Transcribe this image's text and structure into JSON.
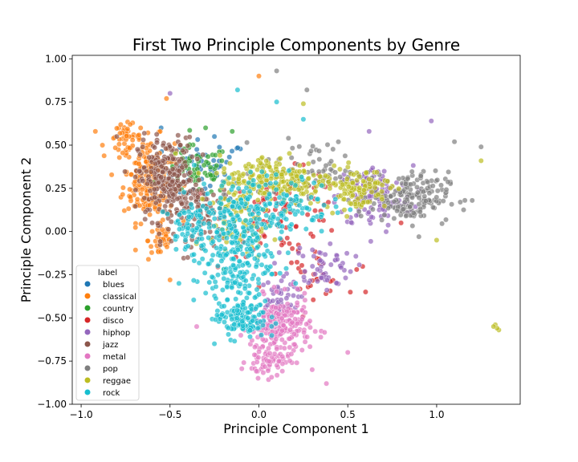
{
  "chart_data": {
    "type": "scatter",
    "title": "First Two Principle Components by Genre",
    "xlabel": "Principle Component 1",
    "ylabel": "Principle Component 2",
    "xlim": [
      -1.05,
      1.47
    ],
    "ylim": [
      -1.0,
      1.02
    ],
    "xticks": [
      -1.0,
      -0.5,
      0.0,
      0.5,
      1.0
    ],
    "xtick_labels": [
      "−1.0",
      "−0.5",
      "0.0",
      "0.5",
      "1.0"
    ],
    "yticks": [
      -1.0,
      -0.75,
      -0.5,
      -0.25,
      0.0,
      0.25,
      0.5,
      0.75,
      1.0
    ],
    "ytick_labels": [
      "−1.00",
      "−0.75",
      "−0.50",
      "−0.25",
      "0.00",
      "0.25",
      "0.50",
      "0.75",
      "1.00"
    ],
    "grid": false,
    "legend": {
      "title": "label",
      "placement": "lower-left"
    },
    "series": [
      {
        "name": "blues",
        "color": "#1f77b4",
        "clusters": [
          {
            "center": [
              -0.3,
              0.35
            ],
            "spread": [
              0.2,
              0.15
            ],
            "n": 60
          }
        ],
        "points": [
          [
            -0.55,
            0.6
          ],
          [
            -0.25,
            0.55
          ]
        ]
      },
      {
        "name": "classical",
        "color": "#ff7f0e",
        "clusters": [
          {
            "center": [
              -0.62,
              0.3
            ],
            "spread": [
              0.12,
              0.2
            ],
            "n": 220
          },
          {
            "center": [
              -0.75,
              0.55
            ],
            "spread": [
              0.07,
              0.06
            ],
            "n": 40
          },
          {
            "center": [
              -0.55,
              -0.05
            ],
            "spread": [
              0.06,
              0.1
            ],
            "n": 40
          }
        ],
        "points": [
          [
            -0.92,
            0.58
          ],
          [
            -0.88,
            0.5
          ],
          [
            -0.5,
            -0.28
          ],
          [
            -0.52,
            0.77
          ],
          [
            0.0,
            0.9
          ]
        ]
      },
      {
        "name": "country",
        "color": "#2ca02c",
        "clusters": [
          {
            "center": [
              -0.35,
              0.35
            ],
            "spread": [
              0.15,
              0.12
            ],
            "n": 60
          }
        ],
        "points": [
          [
            -0.15,
            0.58
          ],
          [
            -0.3,
            0.6
          ]
        ]
      },
      {
        "name": "disco",
        "color": "#d62728",
        "clusters": [
          {
            "center": [
              0.15,
              0.1
            ],
            "spread": [
              0.28,
              0.2
            ],
            "n": 90
          },
          {
            "center": [
              0.3,
              -0.25
            ],
            "spread": [
              0.15,
              0.1
            ],
            "n": 30
          }
        ],
        "points": [
          [
            0.6,
            -0.35
          ],
          [
            0.8,
            0.05
          ],
          [
            0.55,
            -0.22
          ],
          [
            0.0,
            -0.32
          ]
        ]
      },
      {
        "name": "hiphop",
        "color": "#9467bd",
        "clusters": [
          {
            "center": [
              0.65,
              0.2
            ],
            "spread": [
              0.18,
              0.15
            ],
            "n": 140
          },
          {
            "center": [
              0.35,
              -0.2
            ],
            "spread": [
              0.15,
              0.12
            ],
            "n": 60
          },
          {
            "center": [
              0.1,
              -0.4
            ],
            "spread": [
              0.1,
              0.1
            ],
            "n": 40
          }
        ],
        "points": [
          [
            -0.5,
            0.8
          ],
          [
            0.97,
            0.64
          ],
          [
            0.62,
            0.58
          ]
        ]
      },
      {
        "name": "jazz",
        "color": "#8c564b",
        "clusters": [
          {
            "center": [
              -0.52,
              0.3
            ],
            "spread": [
              0.13,
              0.2
            ],
            "n": 260
          },
          {
            "center": [
              -0.3,
              0.1
            ],
            "spread": [
              0.15,
              0.15
            ],
            "n": 80
          }
        ],
        "points": [
          [
            -0.8,
            0.55
          ],
          [
            -0.6,
            0.05
          ],
          [
            -0.4,
            -0.15
          ]
        ]
      },
      {
        "name": "metal",
        "color": "#e377c2",
        "clusters": [
          {
            "center": [
              0.12,
              -0.55
            ],
            "spread": [
              0.14,
              0.14
            ],
            "n": 220
          },
          {
            "center": [
              0.05,
              -0.75
            ],
            "spread": [
              0.1,
              0.08
            ],
            "n": 60
          }
        ],
        "points": [
          [
            0.38,
            -0.88
          ],
          [
            -0.35,
            -0.55
          ],
          [
            0.5,
            -0.7
          ],
          [
            0.3,
            -0.8
          ]
        ]
      },
      {
        "name": "pop",
        "color": "#7f7f7f",
        "clusters": [
          {
            "center": [
              0.85,
              0.2
            ],
            "spread": [
              0.18,
              0.12
            ],
            "n": 180
          },
          {
            "center": [
              0.3,
              0.35
            ],
            "spread": [
              0.25,
              0.15
            ],
            "n": 70
          }
        ],
        "points": [
          [
            0.1,
            0.93
          ],
          [
            0.27,
            0.82
          ],
          [
            1.25,
            0.49
          ],
          [
            1.2,
            0.18
          ],
          [
            0.9,
            -0.03
          ],
          [
            1.1,
            0.52
          ]
        ]
      },
      {
        "name": "reggae",
        "color": "#bcbd22",
        "clusters": [
          {
            "center": [
              0.1,
              0.3
            ],
            "spread": [
              0.28,
              0.12
            ],
            "n": 220
          },
          {
            "center": [
              0.55,
              0.25
            ],
            "spread": [
              0.15,
              0.1
            ],
            "n": 100
          },
          {
            "center": [
              -0.1,
              0.05
            ],
            "spread": [
              0.15,
              0.15
            ],
            "n": 60
          }
        ],
        "points": [
          [
            1.33,
            -0.54
          ],
          [
            1.35,
            -0.57
          ],
          [
            1.34,
            -0.56
          ],
          [
            1.32,
            -0.55
          ],
          [
            1.25,
            0.41
          ],
          [
            1.0,
            -0.05
          ],
          [
            0.25,
            0.74
          ]
        ]
      },
      {
        "name": "rock",
        "color": "#17becf",
        "clusters": [
          {
            "center": [
              -0.15,
              -0.15
            ],
            "spread": [
              0.18,
              0.25
            ],
            "n": 220
          },
          {
            "center": [
              -0.1,
              -0.5
            ],
            "spread": [
              0.12,
              0.1
            ],
            "n": 120
          },
          {
            "center": [
              0.05,
              0.15
            ],
            "spread": [
              0.3,
              0.15
            ],
            "n": 180
          },
          {
            "center": [
              -0.4,
              0.05
            ],
            "spread": [
              0.08,
              0.12
            ],
            "n": 60
          }
        ],
        "points": [
          [
            -0.12,
            0.82
          ],
          [
            0.1,
            0.75
          ],
          [
            0.25,
            0.65
          ],
          [
            -0.45,
            -0.3
          ],
          [
            -0.25,
            -0.65
          ]
        ]
      }
    ]
  }
}
